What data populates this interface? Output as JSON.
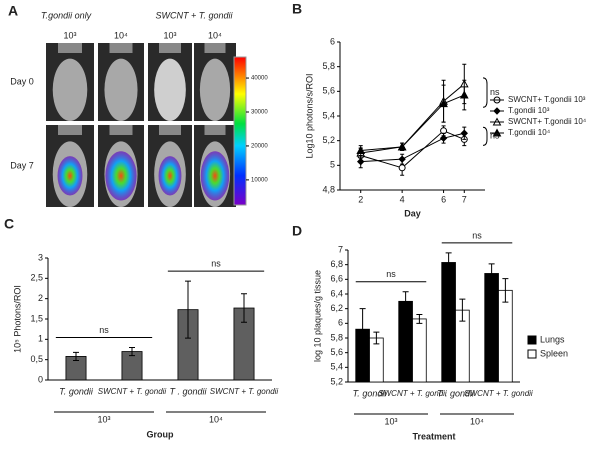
{
  "chart_data": [
    {
      "type": "image-grid",
      "panel": "A",
      "groups": [
        "T.gondii only",
        "SWCNT + T. gondii"
      ],
      "columns": [
        "10³",
        "10⁴",
        "10³",
        "10⁴"
      ],
      "rows": [
        "Day 0",
        "Day 7"
      ],
      "colorbar_lim": [
        2600,
        46200
      ],
      "colorbar_ticks": [
        10000,
        20000,
        30000,
        40000
      ]
    },
    {
      "type": "line",
      "panel": "B",
      "xlabel": "Day",
      "ylabel": "Log10 photons/s/ROI",
      "x": [
        2,
        4,
        6,
        7
      ],
      "xlim": [
        1,
        8
      ],
      "xticks": [
        2,
        4,
        6,
        7
      ],
      "ylim": [
        4.8,
        6
      ],
      "yticks": [
        {
          "value": 4.8,
          "label": "4,8"
        },
        5,
        {
          "value": 5.2,
          "label": "5,2"
        },
        {
          "value": 5.4,
          "label": "5,4"
        },
        {
          "value": 5.6,
          "label": "5,6"
        },
        {
          "value": 5.8,
          "label": "5,8"
        },
        6
      ],
      "series": [
        {
          "name": "SWCNT+ T.gondii 10³",
          "marker": "open-circle",
          "color": "#000000",
          "values": [
            5.08,
            4.98,
            5.28,
            5.21
          ],
          "errors": [
            0.06,
            0.06,
            0.04,
            0.05
          ]
        },
        {
          "name": "T.gondii 10³",
          "marker": "diamond",
          "color": "#000000",
          "values": [
            5.03,
            5.05,
            5.22,
            5.26
          ],
          "errors": [
            0.05,
            0.04,
            0.04,
            0.05
          ]
        },
        {
          "name": "SWCNT+ T.gondii 10⁴",
          "marker": "open-triangle",
          "color": "#000000",
          "values": [
            5.1,
            5.15,
            5.52,
            5.66
          ],
          "errors": [
            0.04,
            0.03,
            0.17,
            0.16
          ]
        },
        {
          "name": "T.gondii 10⁴",
          "marker": "triangle",
          "color": "#000000",
          "values": [
            5.12,
            5.15,
            5.5,
            5.57
          ],
          "errors": [
            0.04,
            0.03,
            0.15,
            0.12
          ]
        }
      ],
      "annotations": [
        "ns",
        "ns"
      ]
    },
    {
      "type": "bar",
      "panel": "C",
      "xlabel": "Group",
      "ylabel": "10⁵ Photons/ROI",
      "categories": [
        "T. gondii",
        "SWCNT + T. gondii",
        "T . gondii",
        "SWCNT + T. gondii"
      ],
      "groups": [
        "10³",
        "10⁴"
      ],
      "ylim": [
        0,
        3
      ],
      "yticks": [
        0,
        {
          "value": 0.5,
          "label": "0,5"
        },
        1,
        {
          "value": 1.5,
          "label": "1,5"
        },
        2,
        {
          "value": 2.5,
          "label": "2,5"
        },
        3
      ],
      "series": [
        {
          "name": null,
          "color": "#5f5f5f",
          "values": [
            0.58,
            0.7,
            1.73,
            1.77
          ],
          "errors": [
            0.1,
            0.1,
            0.7,
            0.35
          ]
        }
      ],
      "annotations": [
        "ns",
        "ns"
      ]
    },
    {
      "type": "bar",
      "panel": "D",
      "xlabel": "Treatment",
      "ylabel": "log 10 plaques/g tissue",
      "categories": [
        "T. gondii",
        "SWCNT + T. gondii",
        "T . gondii",
        "SWCNT + T. gondii"
      ],
      "groups": [
        "10³",
        "10⁴"
      ],
      "ylim": [
        5.2,
        7
      ],
      "yticks": [
        {
          "value": 5.2,
          "label": "5,2"
        },
        {
          "value": 5.4,
          "label": "5,4"
        },
        {
          "value": 5.6,
          "label": "5,6"
        },
        {
          "value": 5.8,
          "label": "5,8"
        },
        6,
        {
          "value": 6.2,
          "label": "6,2"
        },
        {
          "value": 6.4,
          "label": "6,4"
        },
        {
          "value": 6.6,
          "label": "6,6"
        },
        {
          "value": 6.8,
          "label": "6,8"
        },
        7
      ],
      "series": [
        {
          "name": "Lungs",
          "color": "#000000",
          "values": [
            5.92,
            6.3,
            6.83,
            6.68
          ],
          "errors": [
            0.28,
            0.13,
            0.13,
            0.13
          ]
        },
        {
          "name": "Spleen",
          "color": "#ffffff",
          "values": [
            5.8,
            6.06,
            6.18,
            6.45
          ],
          "errors": [
            0.08,
            0.06,
            0.15,
            0.16
          ]
        }
      ],
      "annotations": [
        "ns",
        "ns"
      ]
    }
  ]
}
